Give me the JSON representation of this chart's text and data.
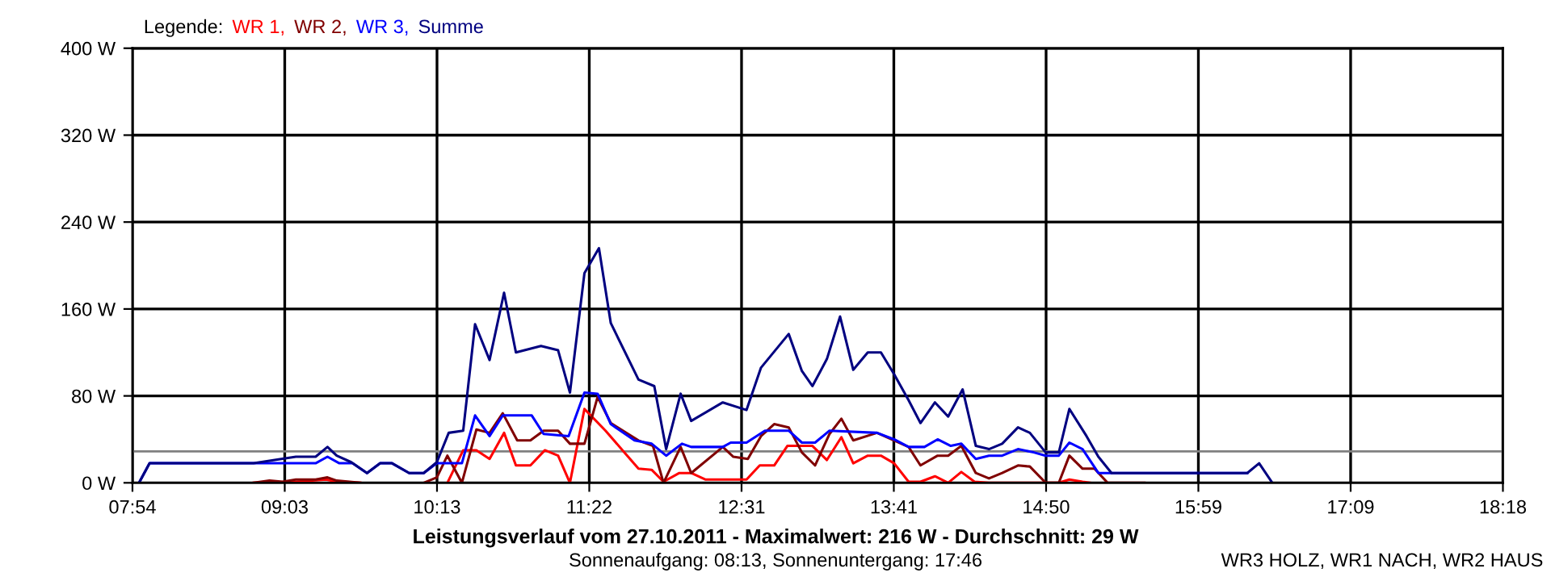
{
  "chart_data": {
    "type": "line",
    "title": "Leistungsverlauf vom 27.10.2011 - Maximalwert: 216 W - Durchschnitt: 29 W",
    "subtitle": "Sonnenaufgang: 08:13, Sonnenuntergang: 17:46",
    "annotations": [
      "WR3 HOLZ, WR1 NACH, WR2 HAUS"
    ],
    "legend_title": "Legende:",
    "legend": "top left",
    "grid": true,
    "marker": "none",
    "line_style": "solid",
    "xlim": [
      7.9,
      18.3
    ],
    "xticks": [
      {
        "value": 7.9,
        "label": "07:54"
      },
      {
        "value": 9.0556,
        "label": "09:03"
      },
      {
        "value": 10.2111,
        "label": "10:13"
      },
      {
        "value": 11.3667,
        "label": "11:22"
      },
      {
        "value": 12.5222,
        "label": "12:31"
      },
      {
        "value": 13.6778,
        "label": "13:41"
      },
      {
        "value": 14.8333,
        "label": "14:50"
      },
      {
        "value": 15.9889,
        "label": "15:59"
      },
      {
        "value": 17.1444,
        "label": "17:09"
      },
      {
        "value": 18.3,
        "label": "18:18"
      }
    ],
    "ylim": [
      0,
      400
    ],
    "yticks": [
      {
        "value": 0,
        "label": "0 W"
      },
      {
        "value": 80,
        "label": "80 W"
      },
      {
        "value": 160,
        "label": "160 W"
      },
      {
        "value": 240,
        "label": "240 W"
      },
      {
        "value": 320,
        "label": "320 W"
      },
      {
        "value": 400,
        "label": "400 W"
      }
    ],
    "ref_lines": [
      {
        "axis": "y",
        "value": 29,
        "label": null,
        "color": "#808080"
      }
    ],
    "series": [
      {
        "name": "WR 1,",
        "color": "#ff0000",
        "x": [
          8.82,
          9.14,
          9.37,
          9.45,
          9.63,
          9.9,
          10.29,
          10.41,
          10.51,
          10.61,
          10.72,
          10.81,
          10.92,
          11.03,
          11.13,
          11.22,
          11.33,
          11.49,
          11.64,
          11.74,
          11.84,
          11.93,
          12.05,
          12.14,
          12.25,
          12.56,
          12.66,
          12.77,
          12.87,
          13.06,
          13.17,
          13.28,
          13.37,
          13.48,
          13.58,
          13.68,
          13.79,
          13.88,
          13.99,
          14.09,
          14.19,
          14.29,
          14.4,
          14.83,
          14.93,
          15.01,
          15.11,
          15.17
        ],
        "values": [
          0,
          1,
          3,
          1,
          0,
          null,
          0,
          30,
          30,
          22,
          46,
          16,
          16,
          30,
          25,
          0,
          68,
          48,
          27,
          13,
          12,
          1,
          9,
          9,
          3,
          3,
          16,
          16,
          34,
          34,
          21,
          42,
          18,
          25,
          25,
          18,
          1,
          1,
          6,
          0,
          10,
          1,
          0,
          0,
          0,
          3,
          1,
          0
        ]
      },
      {
        "name": "WR 2,",
        "color": "#800000",
        "x": [
          8.82,
          8.94,
          9.04,
          9.14,
          9.29,
          9.38,
          9.45,
          9.63,
          9.8,
          10.11,
          10.21,
          10.29,
          10.4,
          10.51,
          10.61,
          10.71,
          10.82,
          10.92,
          11.02,
          11.13,
          11.22,
          11.33,
          11.43,
          11.53,
          11.74,
          11.85,
          11.93,
          12.06,
          12.14,
          12.38,
          12.46,
          12.57,
          12.67,
          12.77,
          12.88,
          12.98,
          13.08,
          13.19,
          13.28,
          13.37,
          13.55,
          13.79,
          13.88,
          14.01,
          14.09,
          14.19,
          14.3,
          14.4,
          14.5,
          14.62,
          14.71,
          14.83,
          14.93,
          15.01,
          15.11,
          15.2,
          15.3,
          15.58
        ],
        "values": [
          0,
          2,
          1,
          3,
          3,
          5,
          2,
          0,
          null,
          0,
          5,
          25,
          0,
          49,
          46,
          64,
          39,
          39,
          48,
          48,
          36,
          36,
          79,
          55,
          39,
          34,
          0,
          33,
          9,
          33,
          24,
          22,
          43,
          54,
          51,
          28,
          16,
          45,
          59,
          39,
          46,
          33,
          16,
          25,
          25,
          34,
          9,
          4,
          9,
          16,
          15,
          0,
          0,
          25,
          13,
          13,
          0,
          0
        ]
      },
      {
        "name": "WR 3,",
        "color": "#0000ff",
        "x": [
          7.95,
          8.03,
          9.29,
          9.38,
          9.47,
          9.57,
          9.68,
          9.78,
          9.87,
          10.0,
          10.11,
          10.21,
          10.4,
          10.5,
          10.61,
          10.71,
          10.93,
          11.02,
          11.21,
          11.33,
          11.43,
          11.53,
          11.71,
          11.84,
          11.95,
          12.07,
          12.14,
          12.38,
          12.44,
          12.56,
          12.7,
          12.88,
          12.98,
          13.08,
          13.19,
          13.55,
          13.68,
          13.79,
          13.91,
          14.01,
          14.11,
          14.19,
          14.3,
          14.4,
          14.5,
          14.62,
          14.74,
          14.83,
          14.93,
          15.01,
          15.11,
          15.23,
          16.36
        ],
        "values": [
          0,
          18,
          18,
          24,
          18,
          18,
          9,
          18,
          18,
          9,
          9,
          18,
          18,
          62,
          43,
          62,
          62,
          45,
          43,
          83,
          82,
          54,
          39,
          36,
          25,
          36,
          33,
          33,
          37,
          37,
          48,
          48,
          37,
          37,
          48,
          46,
          40,
          33,
          33,
          40,
          34,
          36,
          22,
          25,
          25,
          31,
          28,
          25,
          25,
          37,
          31,
          9,
          9
        ]
      },
      {
        "name": "Summe",
        "color": "#000080",
        "x": [
          7.95,
          8.03,
          8.82,
          8.98,
          9.14,
          9.29,
          9.38,
          9.45,
          9.56,
          9.68,
          9.78,
          9.87,
          10.0,
          10.11,
          10.21,
          10.3,
          10.41,
          10.5,
          10.61,
          10.72,
          10.81,
          11.0,
          11.13,
          11.22,
          11.33,
          11.44,
          11.53,
          11.74,
          11.86,
          11.95,
          12.06,
          12.14,
          12.38,
          12.56,
          12.67,
          12.88,
          12.98,
          13.06,
          13.17,
          13.27,
          13.37,
          13.48,
          13.58,
          13.68,
          13.79,
          13.88,
          13.99,
          14.09,
          14.2,
          14.3,
          14.4,
          14.5,
          14.62,
          14.71,
          14.83,
          14.93,
          15.01,
          15.14,
          15.23,
          15.33,
          16.36,
          16.45,
          16.55
        ],
        "values": [
          0,
          18,
          18,
          21,
          24,
          24,
          33,
          25,
          19,
          9,
          18,
          18,
          9,
          9,
          19,
          46,
          48,
          146,
          113,
          175,
          120,
          126,
          122,
          83,
          193,
          216,
          147,
          95,
          89,
          31,
          82,
          57,
          74,
          67,
          106,
          137,
          103,
          89,
          114,
          153,
          104,
          120,
          120,
          100,
          76,
          55,
          74,
          61,
          86,
          34,
          31,
          36,
          51,
          46,
          28,
          28,
          68,
          43,
          24,
          9,
          9,
          18,
          0
        ]
      }
    ]
  }
}
